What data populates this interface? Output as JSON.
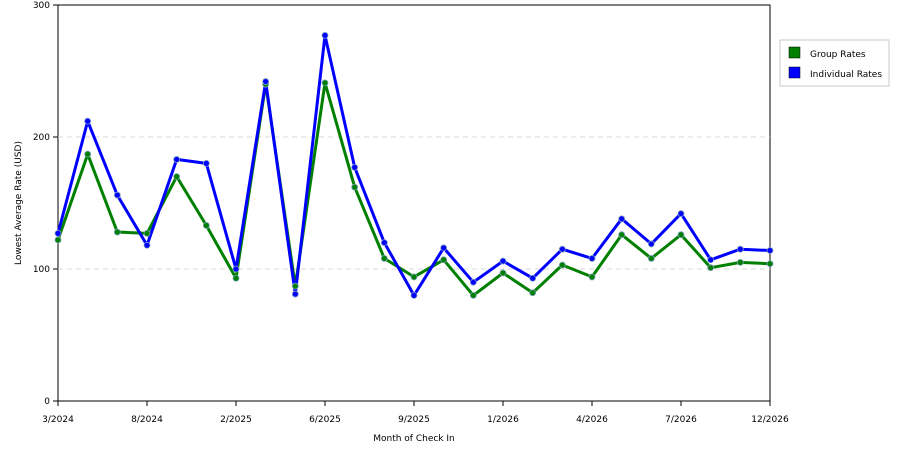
{
  "chart_data": {
    "type": "line",
    "xlabel": "Month of Check In",
    "ylabel": "Lowest Average Rate (USD)",
    "ylim": [
      0,
      300
    ],
    "y_ticks": [
      "0",
      "100",
      "200",
      "300"
    ],
    "x_tick_labels": [
      "3/2024",
      "8/2024",
      "2/2025",
      "6/2025",
      "9/2025",
      "1/2026",
      "4/2026",
      "7/2026",
      "12/2026"
    ],
    "grid": "horizontal dashed",
    "legend_position": "right",
    "series": [
      {
        "name": "Group Rates",
        "color": "#008000",
        "values": [
          122,
          187,
          128,
          127,
          170,
          133,
          93,
          240,
          87,
          241,
          162,
          108,
          94,
          107,
          80,
          97,
          82,
          103,
          94,
          126,
          108,
          126,
          101,
          105,
          104
        ]
      },
      {
        "name": "Individual Rates",
        "color": "#0000ff",
        "values": [
          127,
          212,
          156,
          118,
          183,
          180,
          100,
          242,
          81,
          277,
          177,
          120,
          80,
          116,
          90,
          106,
          93,
          115,
          108,
          138,
          119,
          142,
          107,
          115,
          114
        ]
      }
    ]
  }
}
